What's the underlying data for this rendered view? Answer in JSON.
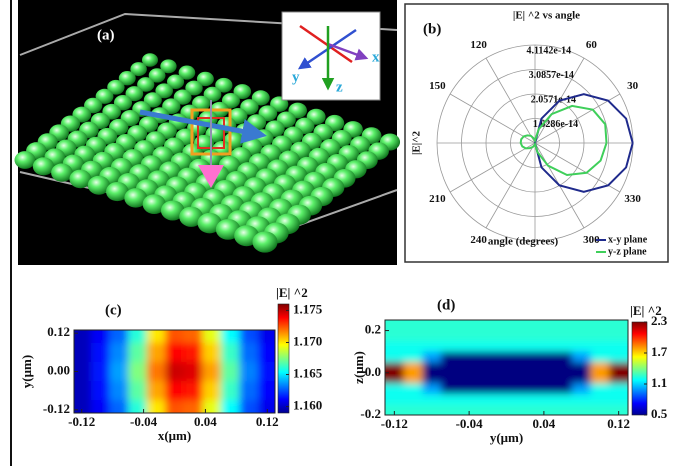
{
  "figure": {
    "panel_a": {
      "label": "(a)",
      "axis_labels": [
        "x",
        "y",
        "z"
      ]
    }
  },
  "chart_data": [
    {
      "type": "polar",
      "panel_label": "(b)",
      "title": "|E| ^2 vs angle",
      "ylabel": "|E|^2",
      "xlabel": "angle (degrees)",
      "theta": [
        0,
        15,
        30,
        45,
        60,
        75,
        90,
        105,
        120,
        135,
        150,
        165,
        180,
        195,
        210,
        225,
        240,
        255,
        270,
        285,
        300,
        315,
        330,
        345,
        360
      ],
      "theta_ticks": [
        30,
        60,
        120,
        150,
        210,
        240,
        300,
        330
      ],
      "rlim": [
        0,
        4.1142e-14
      ],
      "rticks": [
        {
          "value": 1.0286e-14,
          "label": "1.0286e-14"
        },
        {
          "value": 2.0571e-14,
          "label": "2.0571e-14"
        },
        {
          "value": 3.0857e-14,
          "label": "3.0857e-14"
        },
        {
          "value": 4.1142e-14,
          "label": "4.1142e-14"
        }
      ],
      "legend": "lower right",
      "series": [
        {
          "name": "x-y plane",
          "color": "#1f2a8c",
          "values": [
            4.1e-14,
            3.96e-14,
            3.55e-14,
            2.9e-14,
            2.05e-14,
            1.06e-14,
            0,
            0,
            0,
            0,
            0,
            0,
            0,
            0,
            0,
            0,
            0,
            0,
            0,
            1.06e-14,
            2.05e-14,
            2.9e-14,
            3.55e-14,
            3.96e-14,
            4.1e-14
          ]
        },
        {
          "name": "y-z plane",
          "color": "#3fcf5a",
          "values": [
            3e-14,
            3.05e-14,
            2.8e-14,
            2.2e-14,
            1.4e-14,
            6e-15,
            1e-15,
            2e-15,
            3.5e-15,
            4.5e-15,
            5.5e-15,
            6e-15,
            6e-15,
            5.5e-15,
            4.5e-15,
            3e-15,
            2e-15,
            1e-15,
            5e-16,
            4e-15,
            1.1e-14,
            1.9e-14,
            2.5e-14,
            2.85e-14,
            3e-14
          ]
        }
      ]
    },
    {
      "type": "heatmap",
      "panel_label": "(c)",
      "colorbar_label": "|E| ^2",
      "xlabel": "x(μm)",
      "ylabel": "y(μm)",
      "colormap": "jet",
      "x": [
        -0.12,
        -0.096,
        -0.072,
        -0.048,
        -0.024,
        0,
        0.024,
        0.048,
        0.072,
        0.096,
        0.12
      ],
      "y": [
        0.12,
        0.06,
        0,
        -0.06,
        -0.12
      ],
      "z": [
        [
          1.16,
          1.161,
          1.1628,
          1.166,
          1.17,
          1.1725,
          1.1722,
          1.1692,
          1.1654,
          1.1624,
          1.1608
        ],
        [
          1.16,
          1.1613,
          1.1634,
          1.1669,
          1.1711,
          1.1738,
          1.1735,
          1.1704,
          1.1663,
          1.1629,
          1.1611
        ],
        [
          1.16,
          1.1615,
          1.1638,
          1.1675,
          1.1719,
          1.1747,
          1.1744,
          1.1712,
          1.1669,
          1.1633,
          1.1613
        ],
        [
          1.16,
          1.1613,
          1.1634,
          1.1669,
          1.1711,
          1.1738,
          1.1735,
          1.1704,
          1.1663,
          1.1629,
          1.1611
        ],
        [
          1.16,
          1.161,
          1.1628,
          1.166,
          1.17,
          1.1725,
          1.1722,
          1.1692,
          1.1654,
          1.1624,
          1.1608
        ]
      ],
      "xlim": [
        -0.13,
        0.13
      ],
      "ylim": [
        -0.13,
        0.13
      ],
      "xticks": [
        -0.12,
        -0.04,
        0.04,
        0.12
      ],
      "yticks": [
        0.12,
        {
          "value": 0,
          "label": "0.00"
        },
        -0.12
      ],
      "clim": [
        1.159,
        1.176
      ],
      "cticks": [
        1.175,
        {
          "value": 1.17,
          "label": "1.170"
        },
        1.165,
        {
          "value": 1.16,
          "label": "1.160"
        }
      ]
    },
    {
      "type": "heatmap",
      "panel_label": "(d)",
      "colorbar_label": "|E| ^2",
      "xlabel": "y(μm)",
      "ylabel": "z(μm)",
      "colormap": "jet",
      "x": [
        -0.12,
        -0.1,
        -0.08,
        -0.06,
        -0.04,
        -0.02,
        0,
        0.02,
        0.04,
        0.06,
        0.08,
        0.1,
        0.12
      ],
      "y": [
        0.225,
        0.175,
        0.125,
        0.075,
        0.025,
        -0.025,
        -0.075,
        -0.125,
        -0.175
      ],
      "z": [
        [
          1.25,
          1.25,
          1.25,
          1.25,
          1.25,
          1.25,
          1.25,
          1.25,
          1.25,
          1.25,
          1.25,
          1.25,
          1.25
        ],
        [
          1.25,
          1.25,
          1.25,
          1.25,
          1.25,
          1.25,
          1.25,
          1.25,
          1.25,
          1.25,
          1.25,
          1.25,
          1.25
        ],
        [
          1.2,
          1.2,
          1.2,
          1.2,
          1.2,
          1.2,
          1.2,
          1.2,
          1.2,
          1.2,
          1.2,
          1.2,
          1.2
        ],
        [
          1.2,
          1.2,
          1.0,
          0.5,
          0.5,
          0.5,
          0.5,
          0.5,
          0.5,
          0.5,
          1.0,
          1.2,
          1.2
        ],
        [
          2.3,
          1.8,
          0.5,
          0.5,
          0.5,
          0.5,
          0.5,
          0.5,
          0.5,
          0.5,
          0.5,
          1.8,
          2.3
        ],
        [
          2.3,
          1.8,
          0.5,
          0.5,
          0.5,
          0.5,
          0.5,
          0.5,
          0.5,
          0.5,
          0.5,
          1.8,
          2.3
        ],
        [
          1.2,
          1.2,
          1.0,
          0.5,
          0.5,
          0.5,
          0.5,
          0.5,
          0.5,
          0.5,
          1.0,
          1.2,
          1.2
        ],
        [
          1.2,
          1.2,
          1.2,
          1.2,
          1.2,
          1.2,
          1.2,
          1.2,
          1.2,
          1.2,
          1.2,
          1.2,
          1.2
        ],
        [
          1.25,
          1.25,
          1.25,
          1.25,
          1.25,
          1.25,
          1.25,
          1.25,
          1.25,
          1.25,
          1.25,
          1.25,
          1.25
        ]
      ],
      "xlim": [
        -0.13,
        0.13
      ],
      "ylim": [
        -0.2,
        0.25
      ],
      "xticks": [
        -0.12,
        -0.04,
        0.04,
        0.12
      ],
      "yticks": [
        0.2,
        {
          "value": 0,
          "label": "0.0"
        },
        -0.2
      ],
      "clim": [
        0.5,
        2.3
      ],
      "cticks": [
        2.3,
        1.7,
        1.1,
        0.5
      ]
    }
  ]
}
